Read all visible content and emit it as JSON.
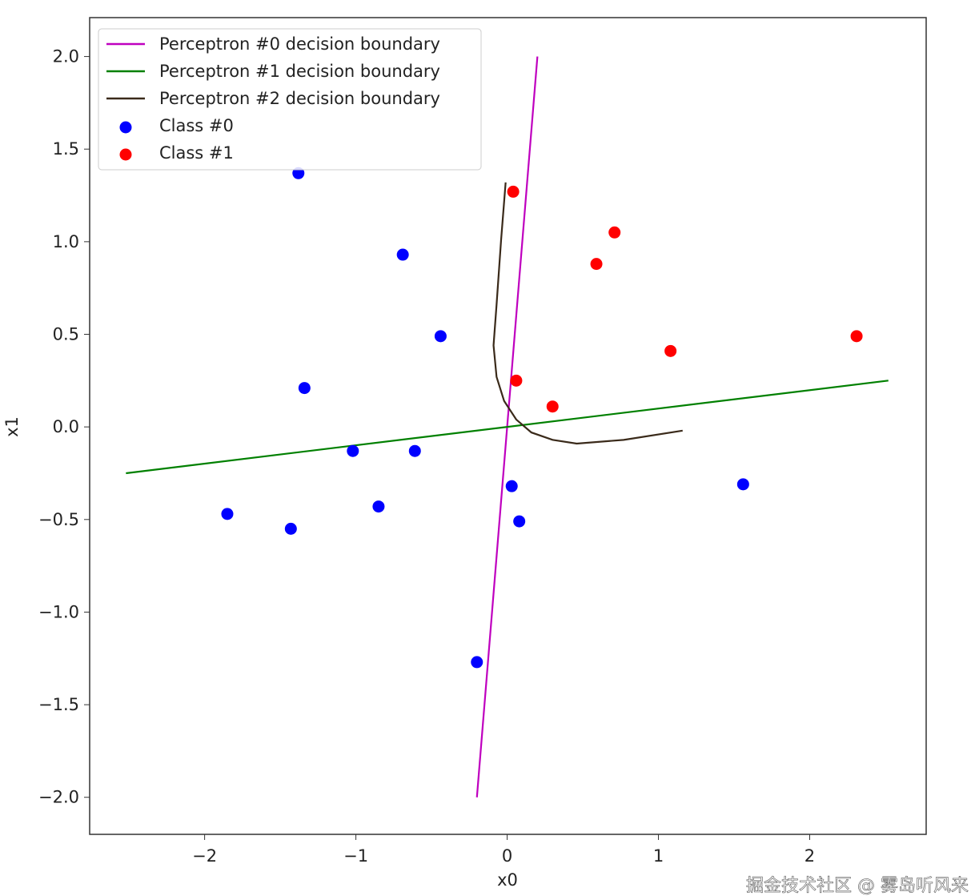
{
  "chart_data": {
    "type": "scatter",
    "xlabel": "x0",
    "ylabel": "x1",
    "xlim": [
      -2.76,
      2.77
    ],
    "ylim": [
      -2.2,
      2.21
    ],
    "xticks": [
      -2,
      -1,
      0,
      1,
      2
    ],
    "xtick_labels": [
      "−2",
      "−1",
      "0",
      "1",
      "2"
    ],
    "yticks": [
      2.0,
      1.5,
      1.0,
      0.5,
      0.0,
      -0.5,
      -1.0,
      -1.5,
      -2.0
    ],
    "ytick_labels": [
      "2.0",
      "1.5",
      "1.0",
      "0.5",
      "0.0",
      "−0.5",
      "−1.0",
      "−1.5",
      "−2.0"
    ],
    "grid": false,
    "legend_position": "top-left",
    "lines": [
      {
        "name": "Perceptron #0 decision boundary",
        "color": "#bf00bf",
        "points": [
          [
            -0.2,
            -2.0
          ],
          [
            0.2,
            2.0
          ]
        ]
      },
      {
        "name": "Perceptron #1 decision boundary",
        "color": "#008000",
        "points": [
          [
            -2.52,
            -0.25
          ],
          [
            2.52,
            0.25
          ]
        ]
      },
      {
        "name": "Perceptron #2 decision boundary",
        "color": "#3a2a1a",
        "points": [
          [
            -0.01,
            1.32
          ],
          [
            -0.04,
            1.01
          ],
          [
            -0.07,
            0.66
          ],
          [
            -0.09,
            0.44
          ],
          [
            -0.07,
            0.27
          ],
          [
            -0.02,
            0.14
          ],
          [
            0.06,
            0.04
          ],
          [
            0.16,
            -0.03
          ],
          [
            0.3,
            -0.07
          ],
          [
            0.46,
            -0.09
          ],
          [
            0.77,
            -0.07
          ],
          [
            1.16,
            -0.02
          ]
        ]
      }
    ],
    "series": [
      {
        "name": "Class #0",
        "color": "#0000ff",
        "points": [
          [
            -1.38,
            1.37
          ],
          [
            -0.69,
            0.93
          ],
          [
            -0.44,
            0.49
          ],
          [
            -1.34,
            0.21
          ],
          [
            -1.02,
            -0.13
          ],
          [
            -0.61,
            -0.13
          ],
          [
            -1.85,
            -0.47
          ],
          [
            -0.85,
            -0.43
          ],
          [
            -1.43,
            -0.55
          ],
          [
            0.03,
            -0.32
          ],
          [
            0.08,
            -0.51
          ],
          [
            1.56,
            -0.31
          ],
          [
            -0.2,
            -1.27
          ]
        ]
      },
      {
        "name": "Class #1",
        "color": "#ff0000",
        "points": [
          [
            0.04,
            1.27
          ],
          [
            0.71,
            1.05
          ],
          [
            0.59,
            0.88
          ],
          [
            1.08,
            0.41
          ],
          [
            2.31,
            0.49
          ],
          [
            0.06,
            0.25
          ],
          [
            0.3,
            0.11
          ]
        ]
      }
    ]
  },
  "watermark": "掘金技术社区 @ 雾岛听风来"
}
